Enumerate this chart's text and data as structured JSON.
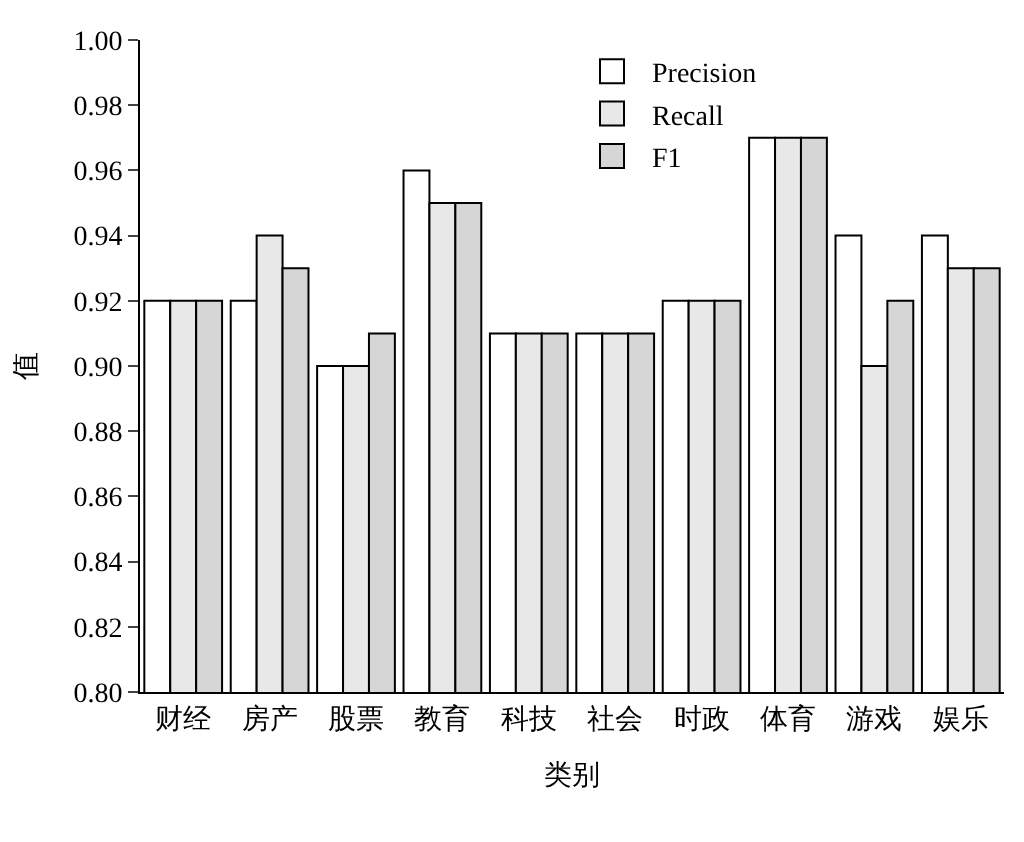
{
  "chart_data": {
    "type": "bar",
    "xlabel": "类别",
    "ylabel": "值",
    "categories": [
      "财经",
      "房产",
      "股票",
      "教育",
      "科技",
      "社会",
      "时政",
      "体育",
      "游戏",
      "娱乐"
    ],
    "series": [
      {
        "name": "Precision",
        "color": "#ffffff",
        "values": [
          0.92,
          0.92,
          0.9,
          0.96,
          0.91,
          0.91,
          0.92,
          0.97,
          0.94,
          0.94
        ]
      },
      {
        "name": "Recall",
        "color": "#e8e8e8",
        "values": [
          0.92,
          0.94,
          0.9,
          0.95,
          0.91,
          0.91,
          0.92,
          0.97,
          0.9,
          0.93
        ]
      },
      {
        "name": "F1",
        "color": "#d6d6d6",
        "values": [
          0.92,
          0.93,
          0.91,
          0.95,
          0.91,
          0.91,
          0.92,
          0.97,
          0.92,
          0.93
        ]
      }
    ],
    "ylim": [
      0.8,
      1.0
    ],
    "yticks": [
      {
        "value": 0.8,
        "label": "0.80"
      },
      {
        "value": 0.82,
        "label": "0.82"
      },
      {
        "value": 0.84,
        "label": "0.84"
      },
      {
        "value": 0.86,
        "label": "0.86"
      },
      {
        "value": 0.88,
        "label": "0.88"
      },
      {
        "value": 0.9,
        "label": "0.90"
      },
      {
        "value": 0.92,
        "label": "0.92"
      },
      {
        "value": 0.94,
        "label": "0.94"
      },
      {
        "value": 0.96,
        "label": "0.96"
      },
      {
        "value": 0.98,
        "label": "0.98"
      },
      {
        "value": 1.0,
        "label": "1.00"
      }
    ],
    "legend": "top right"
  }
}
